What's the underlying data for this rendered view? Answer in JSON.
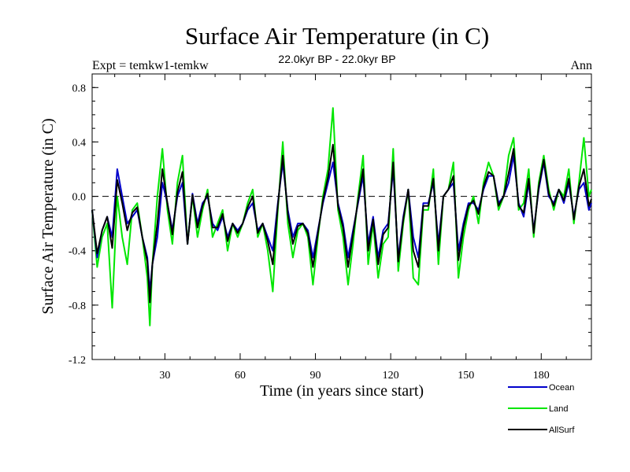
{
  "chart_data": {
    "type": "line",
    "title": "Surface Air Temperature (in C)",
    "subtitle_left": "Expt = temkw1-temkw",
    "subtitle_center": "22.0kyr BP - 22.0kyr BP",
    "subtitle_right": "Ann",
    "xlabel": "Time (in years since start)",
    "ylabel": "Surface Air Temperature (in C)",
    "xlim": [
      1,
      200
    ],
    "ylim": [
      -1.2,
      0.9
    ],
    "xticks": [
      30,
      60,
      90,
      120,
      150,
      180
    ],
    "xtick_labels": [
      "30",
      "60",
      "90",
      "120",
      "150",
      "180"
    ],
    "yticks": [
      -1.2,
      -0.8,
      -0.4,
      0.0,
      0.4,
      0.8
    ],
    "ytick_labels": [
      "-1.2",
      "-0.8",
      "-0.4",
      "0.0",
      "0.4",
      "0.8"
    ],
    "reference_line": {
      "y": 0.0,
      "style": "dashed"
    },
    "legend_position": "bottom-right",
    "series": [
      {
        "name": "Land",
        "color": "#00e600",
        "x": [
          1,
          3,
          5,
          7,
          9,
          11,
          13,
          15,
          17,
          19,
          21,
          23,
          24,
          25,
          27,
          29,
          31,
          33,
          35,
          37,
          39,
          41,
          43,
          45,
          47,
          49,
          51,
          53,
          55,
          57,
          59,
          61,
          63,
          65,
          67,
          69,
          71,
          73,
          75,
          77,
          79,
          81,
          83,
          85,
          87,
          89,
          91,
          93,
          95,
          97,
          99,
          101,
          103,
          105,
          107,
          109,
          111,
          113,
          115,
          117,
          119,
          121,
          123,
          125,
          127,
          129,
          131,
          133,
          135,
          137,
          139,
          141,
          143,
          145,
          147,
          149,
          151,
          153,
          155,
          157,
          159,
          161,
          163,
          165,
          167,
          169,
          171,
          173,
          175,
          177,
          179,
          181,
          183,
          185,
          187,
          189,
          191,
          193,
          195,
          197,
          199,
          200
        ],
        "y": [
          -0.1,
          -0.52,
          -0.3,
          -0.2,
          -0.82,
          0.0,
          -0.3,
          -0.5,
          -0.1,
          -0.05,
          -0.3,
          -0.6,
          -0.95,
          -0.5,
          0.0,
          0.35,
          -0.1,
          -0.35,
          0.1,
          0.3,
          -0.35,
          0.0,
          -0.3,
          -0.1,
          0.05,
          -0.3,
          -0.2,
          -0.1,
          -0.4,
          -0.2,
          -0.3,
          -0.2,
          -0.05,
          0.05,
          -0.3,
          -0.2,
          -0.4,
          -0.7,
          -0.1,
          0.4,
          -0.2,
          -0.45,
          -0.25,
          -0.2,
          -0.3,
          -0.65,
          -0.3,
          0.0,
          0.2,
          0.65,
          -0.1,
          -0.3,
          -0.65,
          -0.35,
          0.0,
          0.3,
          -0.5,
          -0.2,
          -0.6,
          -0.35,
          -0.3,
          0.35,
          -0.55,
          -0.2,
          0.05,
          -0.6,
          -0.65,
          -0.1,
          -0.1,
          0.2,
          -0.5,
          0.0,
          0.05,
          0.25,
          -0.6,
          -0.3,
          -0.1,
          0.0,
          -0.2,
          0.1,
          0.25,
          0.15,
          -0.1,
          0.0,
          0.3,
          0.43,
          -0.1,
          -0.05,
          0.2,
          -0.3,
          0.1,
          0.3,
          0.05,
          -0.1,
          0.05,
          0.0,
          0.2,
          -0.2,
          0.1,
          0.43,
          0.0,
          0.05
        ]
      },
      {
        "name": "Ocean",
        "color": "#0000cc",
        "x": [
          1,
          3,
          5,
          7,
          9,
          11,
          13,
          15,
          17,
          19,
          21,
          23,
          24,
          25,
          27,
          29,
          31,
          33,
          35,
          37,
          39,
          41,
          43,
          45,
          47,
          49,
          51,
          53,
          55,
          57,
          59,
          61,
          63,
          65,
          67,
          69,
          71,
          73,
          75,
          77,
          79,
          81,
          83,
          85,
          87,
          89,
          91,
          93,
          95,
          97,
          99,
          101,
          103,
          105,
          107,
          109,
          111,
          113,
          115,
          117,
          119,
          121,
          123,
          125,
          127,
          129,
          131,
          133,
          135,
          137,
          139,
          141,
          143,
          145,
          147,
          149,
          151,
          153,
          155,
          157,
          159,
          161,
          163,
          165,
          167,
          169,
          171,
          173,
          175,
          177,
          179,
          181,
          183,
          185,
          187,
          189,
          191,
          193,
          195,
          197,
          199,
          200
        ],
        "y": [
          -0.1,
          -0.45,
          -0.25,
          -0.15,
          -0.3,
          0.2,
          0.0,
          -0.2,
          -0.15,
          -0.1,
          -0.3,
          -0.45,
          -0.7,
          -0.5,
          -0.3,
          0.1,
          -0.05,
          -0.25,
          0.0,
          0.1,
          -0.35,
          0.02,
          -0.2,
          -0.05,
          0.0,
          -0.2,
          -0.25,
          -0.15,
          -0.3,
          -0.2,
          -0.25,
          -0.2,
          -0.1,
          -0.05,
          -0.25,
          -0.2,
          -0.3,
          -0.4,
          -0.05,
          0.25,
          -0.1,
          -0.3,
          -0.2,
          -0.2,
          -0.25,
          -0.45,
          -0.25,
          -0.05,
          0.1,
          0.25,
          -0.05,
          -0.2,
          -0.45,
          -0.25,
          -0.05,
          0.15,
          -0.35,
          -0.15,
          -0.45,
          -0.25,
          -0.2,
          0.2,
          -0.45,
          -0.15,
          0.05,
          -0.3,
          -0.45,
          -0.05,
          -0.05,
          0.1,
          -0.35,
          0.0,
          0.05,
          0.1,
          -0.4,
          -0.2,
          -0.05,
          -0.05,
          -0.1,
          0.05,
          0.15,
          0.15,
          -0.05,
          0.0,
          0.1,
          0.3,
          -0.05,
          -0.15,
          0.1,
          -0.25,
          0.05,
          0.25,
          0.0,
          -0.05,
          0.05,
          -0.05,
          0.1,
          -0.15,
          0.05,
          0.1,
          -0.1,
          -0.05
        ]
      },
      {
        "name": "AllSurf",
        "color": "#000000",
        "x": [
          1,
          3,
          5,
          7,
          9,
          11,
          13,
          15,
          17,
          19,
          21,
          23,
          24,
          25,
          27,
          29,
          31,
          33,
          35,
          37,
          39,
          41,
          43,
          45,
          47,
          49,
          51,
          53,
          55,
          57,
          59,
          61,
          63,
          65,
          67,
          69,
          71,
          73,
          75,
          77,
          79,
          81,
          83,
          85,
          87,
          89,
          91,
          93,
          95,
          97,
          99,
          101,
          103,
          105,
          107,
          109,
          111,
          113,
          115,
          117,
          119,
          121,
          123,
          125,
          127,
          129,
          131,
          133,
          135,
          137,
          139,
          141,
          143,
          145,
          147,
          149,
          151,
          153,
          155,
          157,
          159,
          161,
          163,
          165,
          167,
          169,
          171,
          173,
          175,
          177,
          179,
          181,
          183,
          185,
          187,
          189,
          191,
          193,
          195,
          197,
          199,
          200
        ],
        "y": [
          -0.1,
          -0.42,
          -0.25,
          -0.15,
          -0.38,
          0.12,
          -0.05,
          -0.25,
          -0.12,
          -0.08,
          -0.3,
          -0.48,
          -0.78,
          -0.5,
          -0.2,
          0.2,
          -0.05,
          -0.28,
          0.03,
          0.18,
          -0.35,
          0.01,
          -0.23,
          -0.07,
          0.02,
          -0.23,
          -0.23,
          -0.13,
          -0.33,
          -0.2,
          -0.27,
          -0.2,
          -0.08,
          0.0,
          -0.27,
          -0.2,
          -0.33,
          -0.5,
          -0.07,
          0.3,
          -0.13,
          -0.35,
          -0.22,
          -0.2,
          -0.27,
          -0.52,
          -0.27,
          -0.03,
          0.14,
          0.38,
          -0.07,
          -0.23,
          -0.52,
          -0.28,
          -0.03,
          0.2,
          -0.4,
          -0.17,
          -0.5,
          -0.28,
          -0.23,
          0.25,
          -0.48,
          -0.17,
          0.05,
          -0.4,
          -0.52,
          -0.07,
          -0.07,
          0.13,
          -0.4,
          0.0,
          0.05,
          0.15,
          -0.47,
          -0.23,
          -0.07,
          -0.03,
          -0.13,
          0.07,
          0.18,
          0.15,
          -0.07,
          0.0,
          0.17,
          0.35,
          -0.07,
          -0.12,
          0.13,
          -0.27,
          0.07,
          0.27,
          0.02,
          -0.07,
          0.05,
          -0.03,
          0.13,
          -0.17,
          0.07,
          0.2,
          -0.07,
          -0.02
        ]
      }
    ]
  }
}
